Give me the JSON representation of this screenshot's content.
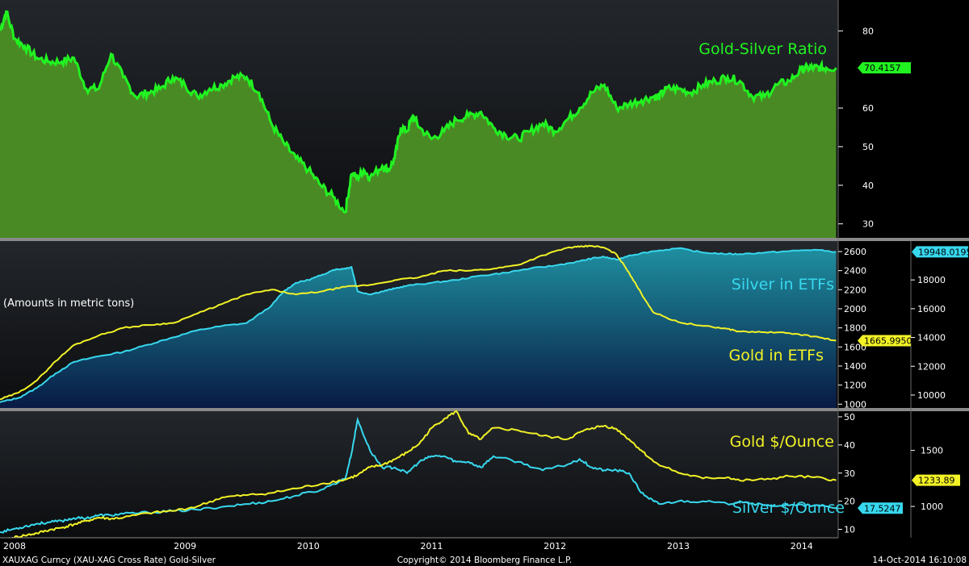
{
  "colors": {
    "green": "#21f321",
    "cyan": "#37d8ee",
    "yellow": "#f2f226",
    "separator": "#8a8a8a"
  },
  "chart_data": [
    {
      "type": "area",
      "name": "Gold-Silver Ratio panel",
      "series": [
        {
          "name": "Gold-Silver Ratio",
          "color": "#21f321",
          "x": [
            2008.0,
            2008.05,
            2008.12,
            2008.2,
            2008.3,
            2008.4,
            2008.5,
            2008.6,
            2008.7,
            2008.8,
            2008.9,
            2009.0,
            2009.1,
            2009.2,
            2009.3,
            2009.4,
            2009.5,
            2009.6,
            2009.7,
            2009.8,
            2009.9,
            2010.0,
            2010.1,
            2010.2,
            2010.3,
            2010.4,
            2010.5,
            2010.6,
            2010.7,
            2010.8,
            2010.85,
            2010.9,
            2010.95,
            2011.0,
            2011.1,
            2011.15,
            2011.2,
            2011.25,
            2011.3,
            2011.35,
            2011.4,
            2011.5,
            2011.6,
            2011.7,
            2011.8,
            2011.9,
            2012.0,
            2012.1,
            2012.2,
            2012.3,
            2012.4,
            2012.5,
            2012.6,
            2012.7,
            2012.8,
            2012.9,
            2013.0,
            2013.1,
            2013.2,
            2013.3,
            2013.35,
            2013.4,
            2013.5,
            2013.6,
            2013.7,
            2013.8,
            2013.9,
            2014.0,
            2014.1,
            2014.2,
            2014.3,
            2014.4,
            2014.5,
            2014.55,
            2014.6,
            2014.65,
            2014.7,
            2014.78
          ],
          "values": [
            80,
            85,
            78,
            76,
            73,
            72,
            72,
            73,
            65,
            65,
            74,
            68,
            63,
            64,
            65,
            68,
            66,
            63,
            65,
            66,
            68,
            68,
            64,
            56,
            51,
            47,
            44,
            40,
            37,
            33,
            43,
            42,
            44,
            42,
            45,
            44,
            47,
            55,
            54,
            58,
            55,
            52,
            54,
            57,
            58,
            59,
            55,
            53,
            52,
            54,
            56,
            54,
            57,
            60,
            64,
            66,
            60,
            61,
            62,
            63,
            63,
            65,
            65,
            64,
            66,
            67,
            68,
            67,
            63,
            63,
            66,
            67,
            70,
            70.4157,
            70.4157,
            70.4157,
            70.4157,
            70.4157
          ],
          "last_label": "70.4157"
        }
      ],
      "ylim": [
        27,
        88
      ],
      "y_ticks": [
        30,
        40,
        50,
        60,
        70,
        80
      ]
    },
    {
      "type": "area",
      "name": "ETF holdings panel",
      "note": "(Amounts in metric tons)",
      "series": [
        {
          "name": "Silver in ETFs",
          "axis": "right",
          "color": "#37d8ee",
          "x": [
            2008.0,
            2008.15,
            2008.3,
            2008.45,
            2008.6,
            2008.8,
            2009.0,
            2009.2,
            2009.4,
            2009.6,
            2009.8,
            2010.0,
            2010.2,
            2010.3,
            2010.4,
            2010.5,
            2010.6,
            2010.7,
            2010.8,
            2010.85,
            2010.9,
            2011.0,
            2011.1,
            2011.2,
            2011.3,
            2011.5,
            2011.7,
            2011.9,
            2012.1,
            2012.3,
            2012.5,
            2012.7,
            2012.8,
            2012.9,
            2013.0,
            2013.1,
            2013.3,
            2013.5,
            2013.7,
            2013.9,
            2014.0,
            2014.2,
            2014.4,
            2014.6,
            2014.78
          ],
          "values": [
            9500,
            9800,
            10500,
            11500,
            12300,
            12700,
            13000,
            13500,
            14000,
            14500,
            14800,
            15000,
            16200,
            17200,
            17800,
            18000,
            18300,
            18700,
            18800,
            18900,
            17200,
            17000,
            17200,
            17400,
            17600,
            17800,
            18000,
            18300,
            18500,
            18800,
            19000,
            19300,
            19500,
            19600,
            19400,
            19700,
            20000,
            20200,
            19900,
            19800,
            19800,
            19900,
            20000,
            20100,
            19948.0195
          ],
          "last_label": "19948.0195"
        },
        {
          "name": "Gold in ETFs",
          "axis": "left",
          "color": "#f2f226",
          "x": [
            2008.0,
            2008.15,
            2008.3,
            2008.45,
            2008.6,
            2008.8,
            2009.0,
            2009.2,
            2009.4,
            2009.6,
            2009.8,
            2010.0,
            2010.2,
            2010.4,
            2010.6,
            2010.8,
            2011.0,
            2011.2,
            2011.4,
            2011.6,
            2011.8,
            2012.0,
            2012.2,
            2012.4,
            2012.6,
            2012.7,
            2012.8,
            2012.9,
            2013.0,
            2013.1,
            2013.2,
            2013.3,
            2013.5,
            2013.7,
            2013.9,
            2014.0,
            2014.2,
            2014.4,
            2014.6,
            2014.78
          ],
          "values": [
            1050,
            1120,
            1250,
            1450,
            1620,
            1720,
            1800,
            1830,
            1850,
            1950,
            2050,
            2150,
            2200,
            2150,
            2180,
            2230,
            2250,
            2300,
            2330,
            2400,
            2400,
            2420,
            2460,
            2560,
            2640,
            2650,
            2660,
            2640,
            2570,
            2380,
            2160,
            1960,
            1860,
            1820,
            1790,
            1760,
            1755,
            1745,
            1710,
            1665.995
          ],
          "last_label": "1665.9950"
        }
      ],
      "ylim_left": [
        960,
        2710
      ],
      "ylim_right": [
        9100,
        20700
      ],
      "y_ticks_left": [
        1000,
        1200,
        1400,
        1600,
        1800,
        2000,
        2200,
        2400,
        2600
      ],
      "y_ticks_right": [
        10000,
        12000,
        14000,
        16000,
        18000
      ]
    },
    {
      "type": "line",
      "name": "Price panel",
      "series": [
        {
          "name": "Gold $/Ounce",
          "axis": "right",
          "color": "#f2f226",
          "x": [
            2008.0,
            2008.1,
            2008.2,
            2008.3,
            2008.4,
            2008.5,
            2008.6,
            2008.7,
            2008.8,
            2008.9,
            2009.0,
            2009.2,
            2009.4,
            2009.6,
            2009.8,
            2010.0,
            2010.2,
            2010.4,
            2010.6,
            2010.8,
            2010.9,
            2011.0,
            2011.1,
            2011.2,
            2011.3,
            2011.4,
            2011.5,
            2011.6,
            2011.7,
            2011.8,
            2011.9,
            2012.0,
            2012.2,
            2012.4,
            2012.6,
            2012.7,
            2012.8,
            2012.9,
            2013.0,
            2013.1,
            2013.2,
            2013.3,
            2013.5,
            2013.7,
            2013.9,
            2014.0,
            2014.2,
            2014.4,
            2014.6,
            2014.78
          ],
          "values": [
            700,
            720,
            740,
            760,
            790,
            810,
            840,
            870,
            900,
            890,
            900,
            940,
            960,
            1000,
            1080,
            1100,
            1120,
            1160,
            1200,
            1240,
            1280,
            1350,
            1370,
            1420,
            1480,
            1560,
            1700,
            1780,
            1850,
            1650,
            1600,
            1700,
            1680,
            1630,
            1600,
            1660,
            1700,
            1720,
            1690,
            1600,
            1500,
            1400,
            1300,
            1250,
            1260,
            1230,
            1240,
            1270,
            1260,
            1233.89
          ],
          "last_label": "1233.89"
        },
        {
          "name": "Silver $/Ounce",
          "axis": "left",
          "color": "#37d8ee",
          "x": [
            2008.0,
            2008.1,
            2008.2,
            2008.3,
            2008.4,
            2008.5,
            2008.6,
            2008.7,
            2008.8,
            2008.9,
            2009.0,
            2009.2,
            2009.4,
            2009.6,
            2009.8,
            2010.0,
            2010.2,
            2010.4,
            2010.6,
            2010.8,
            2010.85,
            2010.9,
            2011.0,
            2011.1,
            2011.2,
            2011.3,
            2011.4,
            2011.5,
            2011.6,
            2011.7,
            2011.8,
            2011.9,
            2012.0,
            2012.2,
            2012.4,
            2012.6,
            2012.7,
            2012.8,
            2012.9,
            2013.0,
            2013.1,
            2013.2,
            2013.3,
            2013.35,
            2013.5,
            2013.7,
            2013.9,
            2014.0,
            2014.2,
            2014.4,
            2014.6,
            2014.78
          ],
          "values": [
            9,
            10,
            11,
            12,
            12.5,
            13,
            14,
            14,
            15,
            15,
            15.5,
            16,
            16.5,
            17,
            18,
            19,
            20,
            22,
            24,
            28,
            37,
            49,
            38,
            32,
            32,
            30,
            34,
            36,
            36,
            34,
            34,
            32,
            36,
            34,
            31,
            33,
            35,
            32,
            31,
            31,
            30,
            23,
            20,
            19,
            20,
            20,
            19,
            20,
            18.5,
            18.5,
            18.5,
            17.5247
          ],
          "last_label": "17.5247"
        }
      ],
      "ylim_left": [
        7,
        52
      ],
      "ylim_right": [
        720,
        1850
      ],
      "y_ticks_left": [
        10,
        20,
        30,
        40,
        50
      ],
      "y_ticks_right": [
        1000,
        1500
      ]
    }
  ],
  "x_axis": {
    "year_labels": [
      {
        "label": "2008",
        "x": 2008.02
      },
      {
        "label": "2009",
        "x": 2009.5
      },
      {
        "label": "2010",
        "x": 2010.5
      },
      {
        "label": "2011",
        "x": 2011.5
      },
      {
        "label": "2012",
        "x": 2012.5
      },
      {
        "label": "2013",
        "x": 2013.5
      },
      {
        "label": "2014",
        "x": 2014.5
      }
    ]
  },
  "footer": {
    "left": "XAUXAG Curncy (XAU-XAG Cross Rate) Gold-Silver",
    "center": "Copyright© 2014 Bloomberg Finance L.P.",
    "right": "14-Oct-2014 16:10:08"
  }
}
